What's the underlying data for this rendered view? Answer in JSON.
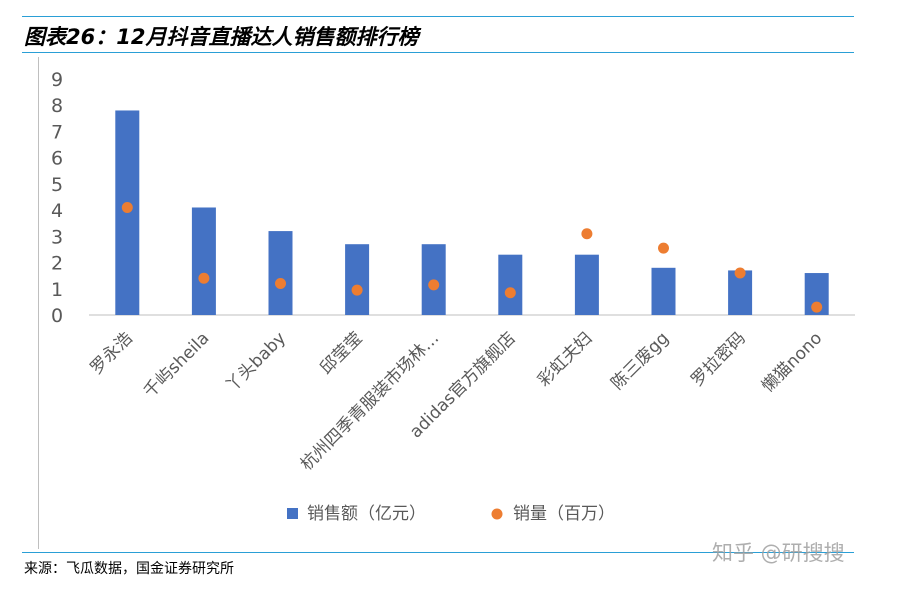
{
  "figure": {
    "title": "图表26：12月抖音直播达人销售额排行榜",
    "source": "来源：飞瓜数据，国金证券研究所",
    "watermark": "知乎 @研搜搜"
  },
  "chart_data": {
    "type": "bar",
    "categories": [
      "罗永浩",
      "千屿sheila",
      "丫头baby",
      "邱莹莹",
      "杭州四季青服装市场林…",
      "adidas官方旗舰店",
      "彩虹夫妇",
      "陈三废gg",
      "罗拉密码",
      "懒猫nono"
    ],
    "series": [
      {
        "name": "销售额（亿元）",
        "type": "bar",
        "color": "#4472c4",
        "values": [
          7.8,
          4.1,
          3.2,
          2.7,
          2.7,
          2.3,
          2.3,
          1.8,
          1.7,
          1.6
        ]
      },
      {
        "name": "销量（百万）",
        "type": "scatter",
        "color": "#ed7d31",
        "values": [
          4.1,
          1.4,
          1.2,
          0.95,
          1.15,
          0.85,
          3.1,
          2.55,
          1.6,
          0.3
        ]
      }
    ],
    "yticks": [
      "0",
      "1",
      "2",
      "3",
      "4",
      "5",
      "6",
      "7",
      "8",
      "9"
    ],
    "ylim": [
      0,
      9
    ],
    "legend_position": "bottom",
    "grid": false
  }
}
